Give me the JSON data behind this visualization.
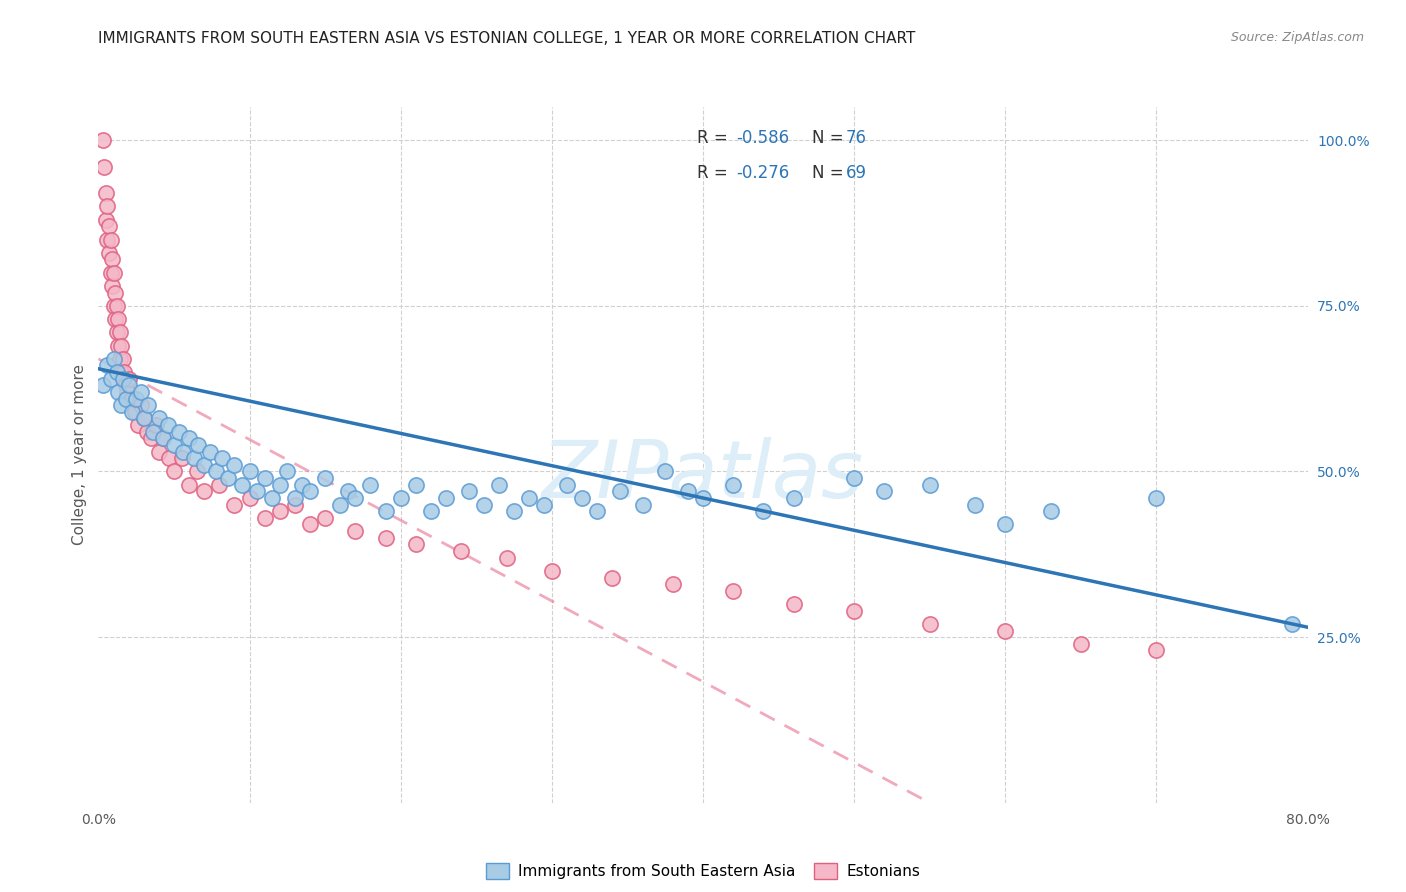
{
  "title": "IMMIGRANTS FROM SOUTH EASTERN ASIA VS ESTONIAN COLLEGE, 1 YEAR OR MORE CORRELATION CHART",
  "source": "Source: ZipAtlas.com",
  "ylabel": "College, 1 year or more",
  "right_yticks": [
    "100.0%",
    "75.0%",
    "50.0%",
    "25.0%"
  ],
  "right_ytick_vals": [
    1.0,
    0.75,
    0.5,
    0.25
  ],
  "legend_label1": "Immigrants from South Eastern Asia",
  "legend_label2": "Estonians",
  "blue_color": "#a8cce4",
  "blue_edge_color": "#5b9bd5",
  "pink_color": "#f4b8c8",
  "pink_edge_color": "#e06080",
  "blue_line_color": "#2e75b6",
  "pink_line_color": "#e87090",
  "pink_dashed_color": "#e8a0b0",
  "watermark_color": "#ddeef8",
  "text_color": "#595959",
  "legend_value_color": "#2e75b6",
  "grid_color": "#d0d0d0",
  "xlim": [
    0.0,
    0.8
  ],
  "ylim": [
    0.0,
    1.05
  ],
  "blue_scatter_x": [
    0.003,
    0.006,
    0.008,
    0.01,
    0.012,
    0.013,
    0.015,
    0.016,
    0.018,
    0.02,
    0.022,
    0.025,
    0.028,
    0.03,
    0.033,
    0.036,
    0.04,
    0.043,
    0.046,
    0.05,
    0.053,
    0.056,
    0.06,
    0.063,
    0.066,
    0.07,
    0.074,
    0.078,
    0.082,
    0.086,
    0.09,
    0.095,
    0.1,
    0.105,
    0.11,
    0.115,
    0.12,
    0.125,
    0.13,
    0.135,
    0.14,
    0.15,
    0.16,
    0.165,
    0.17,
    0.18,
    0.19,
    0.2,
    0.21,
    0.22,
    0.23,
    0.245,
    0.255,
    0.265,
    0.275,
    0.285,
    0.295,
    0.31,
    0.32,
    0.33,
    0.345,
    0.36,
    0.375,
    0.39,
    0.4,
    0.42,
    0.44,
    0.46,
    0.5,
    0.52,
    0.55,
    0.58,
    0.6,
    0.63,
    0.7,
    0.79
  ],
  "blue_scatter_y": [
    0.63,
    0.66,
    0.64,
    0.67,
    0.65,
    0.62,
    0.6,
    0.64,
    0.61,
    0.63,
    0.59,
    0.61,
    0.62,
    0.58,
    0.6,
    0.56,
    0.58,
    0.55,
    0.57,
    0.54,
    0.56,
    0.53,
    0.55,
    0.52,
    0.54,
    0.51,
    0.53,
    0.5,
    0.52,
    0.49,
    0.51,
    0.48,
    0.5,
    0.47,
    0.49,
    0.46,
    0.48,
    0.5,
    0.46,
    0.48,
    0.47,
    0.49,
    0.45,
    0.47,
    0.46,
    0.48,
    0.44,
    0.46,
    0.48,
    0.44,
    0.46,
    0.47,
    0.45,
    0.48,
    0.44,
    0.46,
    0.45,
    0.48,
    0.46,
    0.44,
    0.47,
    0.45,
    0.5,
    0.47,
    0.46,
    0.48,
    0.44,
    0.46,
    0.49,
    0.47,
    0.48,
    0.45,
    0.42,
    0.44,
    0.46,
    0.27
  ],
  "pink_scatter_x": [
    0.003,
    0.004,
    0.005,
    0.005,
    0.006,
    0.006,
    0.007,
    0.007,
    0.008,
    0.008,
    0.009,
    0.009,
    0.01,
    0.01,
    0.011,
    0.011,
    0.012,
    0.012,
    0.013,
    0.013,
    0.014,
    0.014,
    0.015,
    0.015,
    0.016,
    0.016,
    0.017,
    0.018,
    0.019,
    0.02,
    0.022,
    0.024,
    0.026,
    0.028,
    0.03,
    0.032,
    0.035,
    0.038,
    0.04,
    0.043,
    0.047,
    0.05,
    0.055,
    0.06,
    0.065,
    0.07,
    0.08,
    0.09,
    0.1,
    0.11,
    0.12,
    0.13,
    0.14,
    0.15,
    0.17,
    0.19,
    0.21,
    0.24,
    0.27,
    0.3,
    0.34,
    0.38,
    0.42,
    0.46,
    0.5,
    0.55,
    0.6,
    0.65,
    0.7
  ],
  "pink_scatter_y": [
    1.0,
    0.96,
    0.92,
    0.88,
    0.9,
    0.85,
    0.87,
    0.83,
    0.85,
    0.8,
    0.82,
    0.78,
    0.8,
    0.75,
    0.77,
    0.73,
    0.75,
    0.71,
    0.73,
    0.69,
    0.71,
    0.67,
    0.69,
    0.65,
    0.67,
    0.64,
    0.65,
    0.63,
    0.62,
    0.64,
    0.61,
    0.59,
    0.57,
    0.6,
    0.58,
    0.56,
    0.55,
    0.57,
    0.53,
    0.55,
    0.52,
    0.5,
    0.52,
    0.48,
    0.5,
    0.47,
    0.48,
    0.45,
    0.46,
    0.43,
    0.44,
    0.45,
    0.42,
    0.43,
    0.41,
    0.4,
    0.39,
    0.38,
    0.37,
    0.35,
    0.34,
    0.33,
    0.32,
    0.3,
    0.29,
    0.27,
    0.26,
    0.24,
    0.23
  ]
}
